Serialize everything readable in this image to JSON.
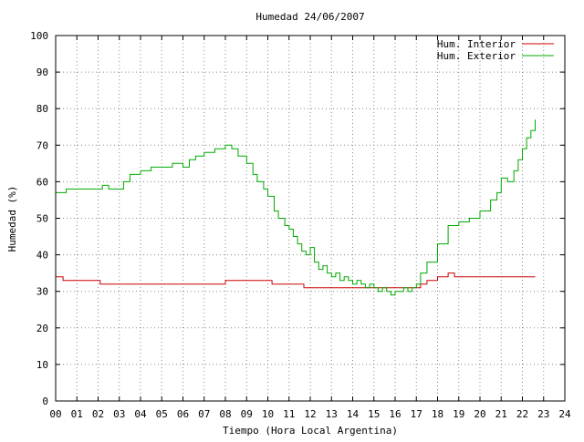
{
  "chart_data": {
    "type": "line",
    "title": "Humedad 24/06/2007",
    "xlabel": "Tiempo (Hora Local Argentina)",
    "ylabel": "Humedad (%)",
    "xlim": [
      0,
      24
    ],
    "ylim": [
      0,
      100
    ],
    "x_ticks": [
      "00",
      "01",
      "02",
      "03",
      "04",
      "05",
      "06",
      "07",
      "08",
      "09",
      "10",
      "11",
      "12",
      "13",
      "14",
      "15",
      "16",
      "17",
      "18",
      "19",
      "20",
      "21",
      "22",
      "23",
      "24"
    ],
    "y_ticks": [
      "0",
      "10",
      "20",
      "30",
      "40",
      "50",
      "60",
      "70",
      "80",
      "90",
      "100"
    ],
    "grid": true,
    "legend_position": "top-right",
    "series": [
      {
        "name": "Hum. Interior",
        "color": "#cc0000",
        "x": [
          0,
          0.3,
          0.35,
          1.0,
          2.0,
          2.1,
          3.5,
          5.0,
          5.5,
          6.0,
          7.0,
          7.5,
          7.9,
          8.0,
          9.0,
          9.5,
          10.0,
          10.2,
          11.0,
          11.5,
          11.7,
          12.0,
          12.5,
          13.0,
          13.5,
          14.0,
          14.5,
          15.0,
          16.0,
          17.0,
          17.2,
          17.5,
          18.0,
          18.2,
          18.5,
          18.8,
          19.0,
          20.0,
          21.0,
          22.0,
          22.6
        ],
        "y": [
          34,
          34,
          33,
          33,
          33,
          32,
          32,
          32,
          32,
          32,
          32,
          32,
          32,
          33,
          33,
          33,
          33,
          32,
          32,
          32,
          31,
          31,
          31,
          31,
          31,
          31,
          31,
          31,
          31,
          31,
          32,
          33,
          34,
          34,
          35,
          34,
          34,
          34,
          34,
          34,
          34
        ]
      },
      {
        "name": "Hum. Exterior",
        "color": "#00aa00",
        "x": [
          0,
          0.4,
          0.5,
          1.0,
          1.3,
          2.0,
          2.2,
          2.5,
          3.0,
          3.2,
          3.5,
          4.0,
          4.5,
          5.0,
          5.5,
          6.0,
          6.3,
          6.6,
          7.0,
          7.5,
          8.0,
          8.3,
          8.6,
          9.0,
          9.3,
          9.5,
          9.8,
          10.0,
          10.3,
          10.5,
          10.8,
          11.0,
          11.2,
          11.4,
          11.6,
          11.8,
          12.0,
          12.2,
          12.4,
          12.6,
          12.8,
          13.0,
          13.2,
          13.4,
          13.6,
          13.8,
          14.0,
          14.2,
          14.4,
          14.6,
          14.8,
          15.0,
          15.2,
          15.4,
          15.6,
          15.8,
          16.0,
          16.2,
          16.4,
          16.6,
          16.8,
          17.0,
          17.2,
          17.5,
          18.0,
          18.5,
          19.0,
          19.5,
          20.0,
          20.5,
          20.8,
          21.0,
          21.3,
          21.6,
          21.8,
          22.0,
          22.2,
          22.4,
          22.6
        ],
        "y": [
          57,
          57,
          58,
          58,
          58,
          58,
          59,
          58,
          58,
          60,
          62,
          63,
          64,
          64,
          65,
          64,
          66,
          67,
          68,
          69,
          70,
          69,
          67,
          65,
          62,
          60,
          58,
          56,
          52,
          50,
          48,
          47,
          45,
          43,
          41,
          40,
          42,
          38,
          36,
          37,
          35,
          34,
          35,
          33,
          34,
          33,
          32,
          33,
          32,
          31,
          32,
          31,
          30,
          31,
          30,
          29,
          30,
          30,
          31,
          30,
          31,
          32,
          35,
          38,
          43,
          48,
          49,
          50,
          52,
          55,
          57,
          61,
          60,
          63,
          66,
          69,
          72,
          74,
          77
        ]
      }
    ]
  }
}
